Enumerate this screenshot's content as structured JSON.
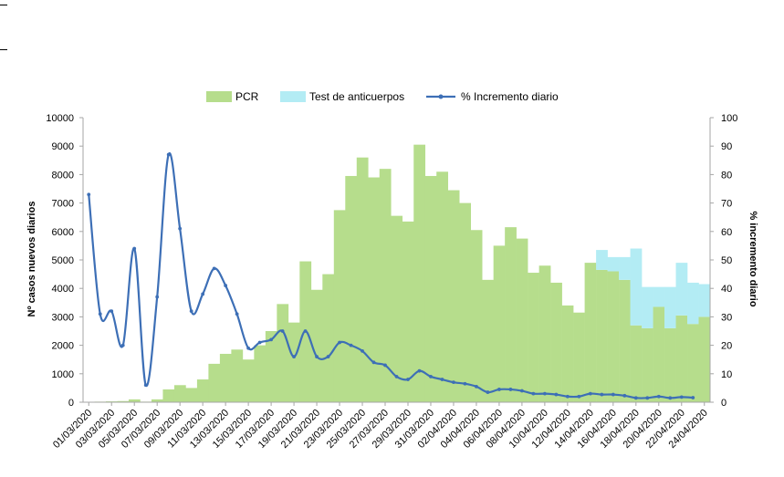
{
  "chart_data": {
    "type": "bar",
    "categories": [
      "01/03/2020",
      "02/03/2020",
      "03/03/2020",
      "04/03/2020",
      "05/03/2020",
      "06/03/2020",
      "07/03/2020",
      "08/03/2020",
      "09/03/2020",
      "10/03/2020",
      "11/03/2020",
      "12/03/2020",
      "13/03/2020",
      "14/03/2020",
      "15/03/2020",
      "16/03/2020",
      "17/03/2020",
      "18/03/2020",
      "19/03/2020",
      "20/03/2020",
      "21/03/2020",
      "22/03/2020",
      "23/03/2020",
      "24/03/2020",
      "25/03/2020",
      "26/03/2020",
      "27/03/2020",
      "28/03/2020",
      "29/03/2020",
      "30/03/2020",
      "31/03/2020",
      "01/04/2020",
      "02/04/2020",
      "03/04/2020",
      "04/04/2020",
      "05/04/2020",
      "06/04/2020",
      "07/04/2020",
      "08/04/2020",
      "09/04/2020",
      "10/04/2020",
      "11/04/2020",
      "12/04/2020",
      "13/04/2020",
      "14/04/2020",
      "15/04/2020",
      "16/04/2020",
      "17/04/2020",
      "18/04/2020",
      "19/04/2020",
      "20/04/2020",
      "21/04/2020",
      "22/04/2020",
      "23/04/2020",
      "24/04/2020"
    ],
    "x_tick_labels": [
      "01/03/2020",
      "03/03/2020",
      "05/03/2020",
      "07/03/2020",
      "09/03/2020",
      "11/03/2020",
      "13/03/2020",
      "15/03/2020",
      "17/03/2020",
      "19/03/2020",
      "21/03/2020",
      "23/03/2020",
      "25/03/2020",
      "27/03/2020",
      "29/03/2020",
      "31/03/2020",
      "02/04/2020",
      "04/04/2020",
      "06/04/2020",
      "08/04/2020",
      "10/04/2020",
      "12/04/2020",
      "14/04/2020",
      "16/04/2020",
      "18/04/2020",
      "20/04/2020",
      "22/04/2020",
      "24/04/2020"
    ],
    "series": [
      {
        "name": "PCR",
        "type": "bar",
        "axis": "left",
        "color": "#b6dd8c",
        "values": [
          10,
          20,
          30,
          40,
          100,
          20,
          100,
          450,
          600,
          500,
          800,
          1350,
          1700,
          1850,
          1500,
          2000,
          2500,
          3450,
          2800,
          4950,
          3950,
          4500,
          6750,
          7950,
          8600,
          7900,
          8200,
          6550,
          6350,
          9050,
          7950,
          8100,
          7450,
          7000,
          6050,
          4300,
          5500,
          6150,
          5750,
          4550,
          4800,
          4200,
          3400,
          3150,
          4900,
          4650,
          4600,
          4300,
          2700,
          2600,
          3350,
          2600,
          3050,
          2750,
          3000
        ]
      },
      {
        "name": "Test de anticuerpos",
        "type": "bar",
        "axis": "left",
        "color": "#b3ecf4",
        "values": [
          0,
          0,
          0,
          0,
          0,
          0,
          0,
          0,
          0,
          0,
          0,
          0,
          0,
          0,
          0,
          0,
          0,
          0,
          0,
          0,
          0,
          0,
          0,
          0,
          0,
          0,
          0,
          0,
          0,
          0,
          0,
          0,
          0,
          0,
          0,
          0,
          0,
          0,
          0,
          0,
          0,
          0,
          0,
          0,
          0,
          700,
          500,
          800,
          2700,
          1450,
          700,
          1450,
          1850,
          1450,
          1150
        ]
      },
      {
        "name": "% Incremento diario",
        "type": "line",
        "axis": "right",
        "color": "#3d6fb6",
        "values": [
          73,
          31,
          32,
          20,
          54,
          6,
          37,
          87,
          61,
          32,
          38,
          47,
          41,
          31,
          19,
          21,
          22,
          25,
          16,
          25,
          16,
          16,
          21,
          20,
          18,
          14,
          13,
          9,
          8,
          11,
          9,
          8,
          7,
          6.5,
          5.5,
          3.5,
          4.5,
          4.5,
          4,
          3,
          3,
          2.7,
          2,
          2,
          3,
          2.7,
          2.7,
          2.3,
          1.5,
          1.5,
          2,
          1.5,
          1.8,
          1.6,
          null
        ]
      }
    ],
    "ylabel": "Nº casos nuevos diarios",
    "y2label": "% incremento diario",
    "ylim": [
      0,
      10000
    ],
    "y2lim": [
      0,
      100
    ],
    "y_ticks": [
      0,
      1000,
      2000,
      3000,
      4000,
      5000,
      6000,
      7000,
      8000,
      9000,
      10000
    ],
    "y2_ticks": [
      0,
      10,
      20,
      30,
      40,
      50,
      60,
      70,
      80,
      90,
      100
    ],
    "grid": false,
    "legend_position": "top"
  }
}
